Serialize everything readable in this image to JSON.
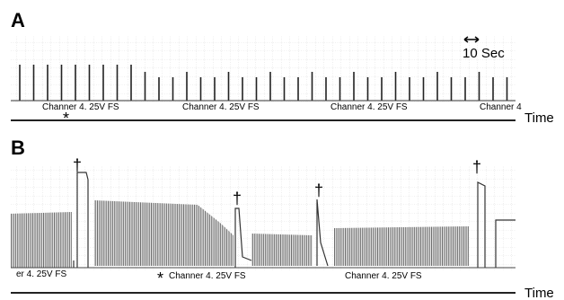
{
  "panels": [
    {
      "label": "A",
      "scale_bar": "10 Sec",
      "channel_labels": [
        "Channer 4. 25V FS",
        "Channer 4. 25V FS",
        "Channer 4. 25V FS",
        "Channer 4"
      ],
      "marker": "*",
      "axis_label": "Time"
    },
    {
      "label": "B",
      "channel_labels": [
        "er 4. 25V FS",
        "Channer 4. 25V FS",
        "Channer 4. 25V FS"
      ],
      "markers": [
        "*",
        "†",
        "†",
        "†",
        "†"
      ],
      "axis_label": "Time"
    }
  ]
}
